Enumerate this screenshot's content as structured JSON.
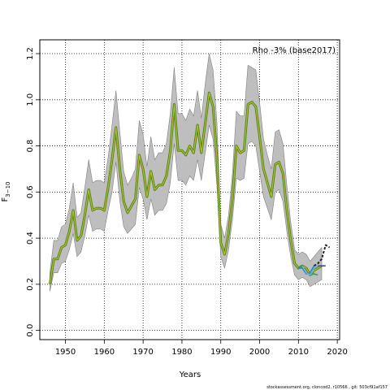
{
  "chart_data": {
    "type": "line",
    "title": "",
    "xlabel": "Years",
    "ylabel": "F",
    "ylabel_subscript": "3−10",
    "annotation": "Rho -3% (base2017)",
    "footer": "stockassessment.org, cloncod2, r10566 , git: 503cf91af157",
    "xlim": [
      1943.4,
      2020.6
    ],
    "ylim": [
      -0.04,
      1.26
    ],
    "x_ticks": [
      1950,
      1960,
      1970,
      1980,
      1990,
      2000,
      2010,
      2020
    ],
    "y_ticks": [
      0.0,
      0.2,
      0.4,
      0.6,
      0.8,
      1.0,
      1.2
    ],
    "grid": true,
    "colors": {
      "band": "#bebebe",
      "band_edge": "#7f7f7f",
      "main_line": "#4d7f1a",
      "main_line_inner": "#b5c227",
      "peel_1": "#2ca25f",
      "peel_2": "#3182bd",
      "peel_3": "#6baed6",
      "peel_4": "#3d3df0",
      "peel_5": "#222222"
    },
    "series": [
      {
        "x": [
          1946,
          1947,
          1948,
          1949,
          1950,
          1951,
          1952,
          1953,
          1954,
          1955,
          1956,
          1957,
          1958,
          1959,
          1960,
          1961,
          1962,
          1963,
          1964,
          1965,
          1966,
          1967,
          1968,
          1969,
          1970,
          1971,
          1972,
          1973,
          1974,
          1975,
          1976,
          1977,
          1978,
          1979,
          1980,
          1981,
          1982,
          1983,
          1984,
          1985,
          1986,
          1987,
          1988,
          1989,
          1990,
          1991,
          1992,
          1993,
          1994,
          1995,
          1996,
          1997,
          1998,
          1999,
          2000,
          2001,
          2002,
          2003,
          2004,
          2005,
          2006,
          2007,
          2008,
          2009,
          2010,
          2011,
          2012,
          2013,
          2014,
          2015,
          2016
        ],
        "values": [
          0.2,
          0.31,
          0.31,
          0.36,
          0.37,
          0.43,
          0.52,
          0.39,
          0.41,
          0.5,
          0.61,
          0.52,
          0.53,
          0.53,
          0.52,
          0.62,
          0.74,
          0.88,
          0.7,
          0.56,
          0.51,
          0.54,
          0.57,
          0.76,
          0.7,
          0.58,
          0.69,
          0.61,
          0.63,
          0.63,
          0.67,
          0.78,
          0.98,
          0.78,
          0.78,
          0.76,
          0.8,
          0.77,
          0.89,
          0.77,
          0.9,
          1.03,
          0.97,
          0.75,
          0.38,
          0.33,
          0.42,
          0.57,
          0.8,
          0.77,
          0.78,
          0.98,
          0.99,
          0.97,
          0.84,
          0.7,
          0.64,
          0.58,
          0.72,
          0.73,
          0.68,
          0.52,
          0.39,
          0.29,
          0.27,
          0.28,
          0.27,
          0.24,
          0.26,
          0.27,
          0.28
        ],
        "lower": [
          0.17,
          0.25,
          0.25,
          0.29,
          0.3,
          0.35,
          0.42,
          0.32,
          0.34,
          0.41,
          0.5,
          0.43,
          0.44,
          0.44,
          0.43,
          0.52,
          0.6,
          0.73,
          0.56,
          0.45,
          0.42,
          0.44,
          0.46,
          0.62,
          0.57,
          0.48,
          0.57,
          0.5,
          0.52,
          0.52,
          0.55,
          0.64,
          0.81,
          0.65,
          0.65,
          0.63,
          0.67,
          0.65,
          0.74,
          0.65,
          0.77,
          0.89,
          0.83,
          0.63,
          0.32,
          0.27,
          0.35,
          0.48,
          0.66,
          0.65,
          0.66,
          0.81,
          0.82,
          0.8,
          0.69,
          0.58,
          0.53,
          0.48,
          0.6,
          0.61,
          0.56,
          0.43,
          0.32,
          0.24,
          0.22,
          0.23,
          0.22,
          0.19,
          0.2,
          0.21,
          0.22
        ],
        "upper": [
          0.25,
          0.39,
          0.39,
          0.45,
          0.46,
          0.53,
          0.64,
          0.49,
          0.51,
          0.62,
          0.74,
          0.64,
          0.65,
          0.65,
          0.64,
          0.75,
          0.89,
          1.04,
          0.86,
          0.69,
          0.63,
          0.66,
          0.7,
          0.91,
          0.85,
          0.71,
          0.84,
          0.74,
          0.77,
          0.77,
          0.81,
          0.94,
          1.14,
          0.94,
          0.94,
          0.91,
          0.96,
          0.93,
          1.04,
          0.92,
          1.07,
          1.2,
          1.13,
          0.9,
          0.46,
          0.4,
          0.5,
          0.68,
          0.95,
          0.93,
          0.93,
          1.15,
          1.14,
          1.13,
          0.99,
          0.83,
          0.76,
          0.7,
          0.86,
          0.87,
          0.81,
          0.63,
          0.47,
          0.35,
          0.33,
          0.34,
          0.33,
          0.3,
          0.32,
          0.34,
          0.36
        ]
      },
      {
        "x": [
          2010,
          2011,
          2012,
          2013,
          2014,
          2015
        ],
        "values": [
          0.27,
          0.28,
          0.25,
          0.24,
          0.245,
          0.24
        ]
      },
      {
        "x": [
          2010,
          2011,
          2012,
          2013,
          2014
        ],
        "values": [
          0.27,
          0.27,
          0.245,
          0.25,
          0.28
        ]
      },
      {
        "x": [
          2011,
          2012,
          2013,
          2014,
          2015
        ],
        "values": [
          0.28,
          0.25,
          0.24,
          0.27,
          0.28
        ]
      },
      {
        "x": [
          2015,
          2016,
          2017
        ],
        "values": [
          0.28,
          0.28,
          0.28
        ]
      },
      {
        "x": [
          2014,
          2015,
          2016,
          2017,
          2018
        ],
        "values": [
          0.28,
          0.29,
          0.31,
          0.37,
          0.36
        ]
      }
    ]
  }
}
